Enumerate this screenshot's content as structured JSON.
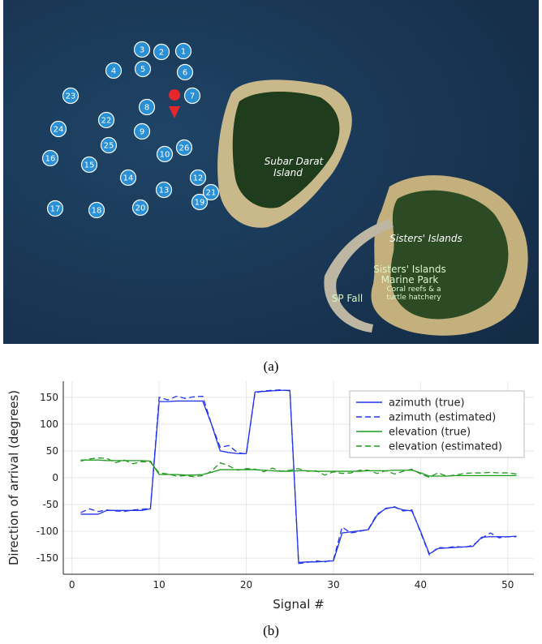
{
  "map": {
    "markers": [
      "1",
      "2",
      "3",
      "4",
      "5",
      "6",
      "7",
      "8",
      "9",
      "10",
      "12",
      "13",
      "14",
      "15",
      "16",
      "17",
      "18",
      "19",
      "20",
      "21",
      "22",
      "23",
      "24",
      "25",
      "26"
    ],
    "labels": [
      "Subar Darat",
      "Island",
      "Sisters' Islands",
      "Sisters' Islands",
      "Marine Park",
      "Coral reefs & a",
      "turtle hatchery",
      "SP Fall"
    ],
    "caption": "(a)"
  },
  "chart_data": {
    "type": "line",
    "caption": "(b)",
    "xlabel": "Signal #",
    "ylabel": "Direction of arrival (degrees)",
    "x": [
      1,
      2,
      3,
      4,
      5,
      6,
      7,
      8,
      9,
      10,
      11,
      12,
      13,
      14,
      15,
      16,
      17,
      18,
      19,
      20,
      21,
      22,
      23,
      24,
      25,
      26,
      27,
      28,
      29,
      30,
      31,
      32,
      33,
      34,
      35,
      36,
      37,
      38,
      39,
      40,
      41,
      42,
      43,
      44,
      45,
      46,
      47,
      48,
      49,
      50,
      51
    ],
    "xlim": [
      -1,
      53
    ],
    "xticks": [
      0,
      10,
      20,
      30,
      40,
      50
    ],
    "ylim": [
      -180,
      180
    ],
    "yticks": [
      -150,
      -100,
      -50,
      0,
      50,
      100,
      150
    ],
    "grid": true,
    "legend": "top-right",
    "series": [
      {
        "name": "azimuth (true)",
        "color": "#2233ee",
        "dashed": false,
        "values": [
          -68,
          -68,
          -68,
          -61,
          -61,
          -61,
          -61,
          -61,
          -58,
          142,
          142,
          143,
          143,
          143,
          143,
          100,
          50,
          47,
          45,
          45,
          160,
          161,
          162,
          163,
          163,
          -158,
          -157,
          -157,
          -156,
          -155,
          -103,
          -101,
          -99,
          -97,
          -70,
          -57,
          -55,
          -60,
          -62,
          -100,
          -142,
          -132,
          -131,
          -130,
          -129,
          -128,
          -111,
          -110,
          -110,
          -110,
          -109
        ]
      },
      {
        "name": "azimuth (estimated)",
        "color": "#2233ee",
        "dashed": true,
        "values": [
          -65,
          -58,
          -63,
          -60,
          -62,
          -63,
          -60,
          -59,
          -57,
          150,
          145,
          152,
          148,
          151,
          152,
          100,
          57,
          60,
          47,
          44,
          158,
          162,
          163,
          164,
          162,
          -160,
          -158,
          -155,
          -157,
          -153,
          -92,
          -103,
          -100,
          -96,
          -68,
          -58,
          -54,
          -62,
          -60,
          -102,
          -144,
          -130,
          -131,
          -128,
          -130,
          -126,
          -113,
          -103,
          -112,
          -110,
          -110
        ]
      },
      {
        "name": "elevation (true)",
        "color": "#1f9a1f",
        "dashed": false,
        "values": [
          33,
          33,
          33,
          32,
          32,
          32,
          32,
          32,
          31,
          6,
          6,
          6,
          5,
          5,
          6,
          10,
          15,
          15,
          15,
          15,
          15,
          14,
          13,
          12,
          12,
          13,
          13,
          12,
          12,
          12,
          12,
          12,
          12,
          13,
          13,
          13,
          14,
          14,
          14,
          9,
          3,
          3,
          3,
          4,
          4,
          4,
          4,
          4,
          4,
          4,
          4
        ]
      },
      {
        "name": "elevation (estimated)",
        "color": "#1f9a1f",
        "dashed": true,
        "values": [
          31,
          35,
          37,
          36,
          28,
          33,
          26,
          30,
          29,
          9,
          7,
          3,
          4,
          2,
          4,
          12,
          28,
          22,
          14,
          17,
          16,
          11,
          18,
          12,
          14,
          17,
          12,
          13,
          5,
          11,
          8,
          9,
          14,
          14,
          8,
          13,
          7,
          12,
          16,
          7,
          1,
          9,
          3,
          5,
          8,
          9,
          9,
          10,
          9,
          9,
          7
        ]
      }
    ]
  }
}
